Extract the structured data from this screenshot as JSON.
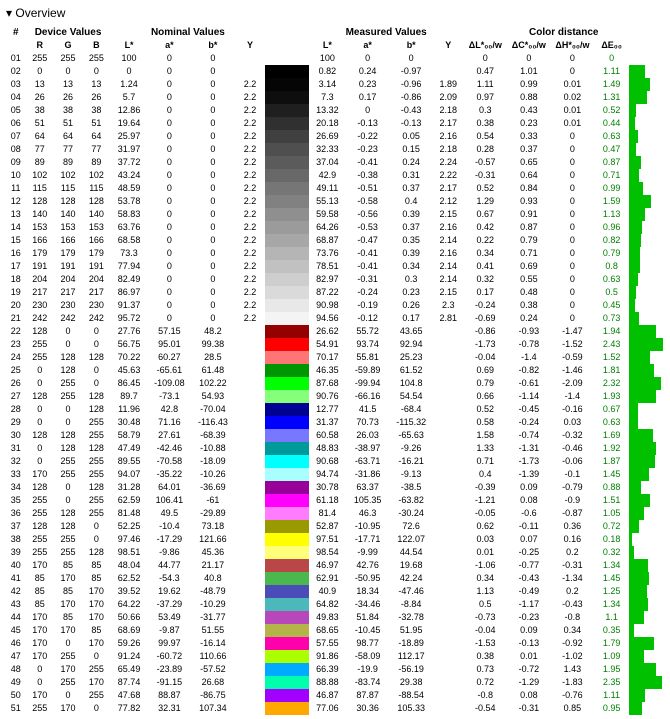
{
  "title": "▾ Overview",
  "groups": {
    "idx": "#",
    "device": "Device Values",
    "nominal": "Nominal Values",
    "measured": "Measured Values",
    "distance": "Color distance"
  },
  "columns": [
    "",
    "R",
    "G",
    "B",
    "L*",
    "a*",
    "b*",
    "Y",
    "",
    "L*",
    "a*",
    "b*",
    "Y",
    "ΔL*₀₀/w",
    "ΔC*₀₀/w",
    "ΔH*₀₀/w",
    "ΔE₀₀",
    ""
  ],
  "bar_color": "#00c000",
  "de_color": "#008000",
  "de_max": 2.5,
  "rows": [
    [
      "01",
      255,
      255,
      255,
      "100",
      "0",
      "0",
      "",
      "#ffffff",
      "100",
      "0",
      "0",
      "",
      "0",
      "0",
      "0",
      "0"
    ],
    [
      "02",
      0,
      0,
      0,
      "0",
      "0",
      "0",
      "",
      "#000000",
      "0.82",
      "0.24",
      "-0.97",
      "",
      "0.47",
      "1.01",
      "0",
      "1.11"
    ],
    [
      "03",
      13,
      13,
      13,
      "1.24",
      "0",
      "0",
      "2.2",
      "#050505",
      "3.14",
      "0.23",
      "-0.96",
      "1.89",
      "1.11",
      "0.99",
      "0.01",
      "1.49"
    ],
    [
      "04",
      26,
      26,
      26,
      "5.7",
      "0",
      "0",
      "2.2",
      "#0e0e0e",
      "7.3",
      "0.17",
      "-0.86",
      "2.09",
      "0.97",
      "0.88",
      "0.02",
      "1.31"
    ],
    [
      "05",
      38,
      38,
      38,
      "12.86",
      "0",
      "0",
      "2.2",
      "#1f1f1f",
      "13.32",
      "0",
      "-0.43",
      "2.18",
      "0.3",
      "0.43",
      "0.01",
      "0.52"
    ],
    [
      "06",
      51,
      51,
      51,
      "19.64",
      "0",
      "0",
      "2.2",
      "#303030",
      "20.18",
      "-0.13",
      "-0.13",
      "2.17",
      "0.38",
      "0.23",
      "0.01",
      "0.44"
    ],
    [
      "07",
      64,
      64,
      64,
      "25.97",
      "0",
      "0",
      "2.2",
      "#404040",
      "26.69",
      "-0.22",
      "0.05",
      "2.16",
      "0.54",
      "0.33",
      "0",
      "0.63"
    ],
    [
      "08",
      77,
      77,
      77,
      "31.97",
      "0",
      "0",
      "2.2",
      "#4f4f4f",
      "32.33",
      "-0.23",
      "0.15",
      "2.18",
      "0.28",
      "0.37",
      "0",
      "0.47"
    ],
    [
      "09",
      89,
      89,
      89,
      "37.72",
      "0",
      "0",
      "2.2",
      "#5b5b5b",
      "37.04",
      "-0.41",
      "0.24",
      "2.24",
      "-0.57",
      "0.65",
      "0",
      "0.87"
    ],
    [
      "10",
      102,
      102,
      102,
      "43.24",
      "0",
      "0",
      "2.2",
      "#686868",
      "42.9",
      "-0.38",
      "0.31",
      "2.22",
      "-0.31",
      "0.64",
      "0",
      "0.71"
    ],
    [
      "11",
      115,
      115,
      115,
      "48.59",
      "0",
      "0",
      "2.2",
      "#767676",
      "49.11",
      "-0.51",
      "0.37",
      "2.17",
      "0.52",
      "0.84",
      "0",
      "0.99"
    ],
    [
      "12",
      128,
      128,
      128,
      "53.78",
      "0",
      "0",
      "2.2",
      "#818181",
      "55.13",
      "-0.58",
      "0.4",
      "2.12",
      "1.29",
      "0.93",
      "0",
      "1.59"
    ],
    [
      "13",
      140,
      140,
      140,
      "58.83",
      "0",
      "0",
      "2.2",
      "#8f8f8f",
      "59.58",
      "-0.56",
      "0.39",
      "2.15",
      "0.67",
      "0.91",
      "0",
      "1.13"
    ],
    [
      "14",
      153,
      153,
      153,
      "63.76",
      "0",
      "0",
      "2.2",
      "#9b9b9b",
      "64.26",
      "-0.53",
      "0.37",
      "2.16",
      "0.42",
      "0.87",
      "0",
      "0.96"
    ],
    [
      "15",
      166,
      166,
      166,
      "68.58",
      "0",
      "0",
      "2.2",
      "#a7a7a7",
      "68.87",
      "-0.47",
      "0.35",
      "2.14",
      "0.22",
      "0.79",
      "0",
      "0.82"
    ],
    [
      "16",
      179,
      179,
      179,
      "73.3",
      "0",
      "0",
      "2.2",
      "#b5b5b5",
      "73.76",
      "-0.41",
      "0.39",
      "2.16",
      "0.34",
      "0.71",
      "0",
      "0.79"
    ],
    [
      "17",
      191,
      191,
      191,
      "77.94",
      "0",
      "0",
      "2.2",
      "#c1c1c1",
      "78.51",
      "-0.41",
      "0.34",
      "2.14",
      "0.41",
      "0.69",
      "0",
      "0.8"
    ],
    [
      "18",
      204,
      204,
      204,
      "82.49",
      "0",
      "0",
      "2.2",
      "#cecece",
      "82.97",
      "-0.31",
      "0.3",
      "2.14",
      "0.32",
      "0.55",
      "0",
      "0.63"
    ],
    [
      "19",
      217,
      217,
      217,
      "86.97",
      "0",
      "0",
      "2.2",
      "#dadada",
      "87.22",
      "-0.24",
      "0.23",
      "2.15",
      "0.17",
      "0.48",
      "0",
      "0.5"
    ],
    [
      "20",
      230,
      230,
      230,
      "91.37",
      "0",
      "0",
      "2.2",
      "#e8e8e8",
      "90.98",
      "-0.19",
      "0.26",
      "2.3",
      "-0.24",
      "0.38",
      "0",
      "0.45"
    ],
    [
      "21",
      242,
      242,
      242,
      "95.72",
      "0",
      "0",
      "2.2",
      "#f4f4f4",
      "94.56",
      "-0.12",
      "0.17",
      "2.81",
      "-0.69",
      "0.24",
      "0",
      "0.73"
    ],
    [
      "22",
      128,
      0,
      0,
      "27.76",
      "57.15",
      "48.2",
      "",
      "#950000",
      "26.62",
      "55.72",
      "43.65",
      "",
      "-0.86",
      "-0.93",
      "-1.47",
      "1.94"
    ],
    [
      "23",
      255,
      0,
      0,
      "56.75",
      "95.01",
      "99.38",
      "",
      "#ff0000",
      "54.91",
      "93.74",
      "92.94",
      "",
      "-1.73",
      "-0.78",
      "-1.52",
      "2.43"
    ],
    [
      "24",
      255,
      128,
      128,
      "70.22",
      "60.27",
      "28.5",
      "",
      "#ff7575",
      "70.17",
      "55.81",
      "25.23",
      "",
      "-0.04",
      "-1.4",
      "-0.59",
      "1.52"
    ],
    [
      "25",
      0,
      128,
      0,
      "45.63",
      "-65.61",
      "61.48",
      "",
      "#009600",
      "46.35",
      "-59.89",
      "61.52",
      "",
      "0.69",
      "-0.82",
      "-1.46",
      "1.81"
    ],
    [
      "26",
      0,
      255,
      0,
      "86.45",
      "-109.08",
      "102.22",
      "",
      "#00ff00",
      "87.68",
      "-99.94",
      "104.8",
      "",
      "0.79",
      "-0.61",
      "-2.09",
      "2.32"
    ],
    [
      "27",
      128,
      255,
      128,
      "89.7",
      "-73.1",
      "54.93",
      "",
      "#86ff7a",
      "90.76",
      "-66.16",
      "54.54",
      "",
      "0.66",
      "-1.14",
      "-1.4",
      "1.93"
    ],
    [
      "28",
      0,
      0,
      128,
      "11.96",
      "42.8",
      "-70.04",
      "",
      "#000092",
      "12.77",
      "41.5",
      "-68.4",
      "",
      "0.52",
      "-0.45",
      "-0.16",
      "0.67"
    ],
    [
      "29",
      0,
      0,
      255,
      "30.48",
      "71.16",
      "-116.43",
      "",
      "#0000ff",
      "31.37",
      "70.73",
      "-115.32",
      "",
      "0.58",
      "-0.24",
      "0.03",
      "0.63"
    ],
    [
      "30",
      128,
      128,
      255,
      "58.79",
      "27.61",
      "-68.39",
      "",
      "#7878ff",
      "60.58",
      "26.03",
      "-65.63",
      "",
      "1.58",
      "-0.74",
      "-0.32",
      "1.69"
    ],
    [
      "31",
      0,
      128,
      128,
      "47.49",
      "-42.46",
      "-10.88",
      "",
      "#009999",
      "48.83",
      "-38.97",
      "-9.26",
      "",
      "1.33",
      "-1.31",
      "-0.46",
      "1.92"
    ],
    [
      "32",
      0,
      255,
      255,
      "89.55",
      "-70.58",
      "-18.09",
      "",
      "#00ffff",
      "90.68",
      "-63.71",
      "-16.21",
      "",
      "0.71",
      "-1.73",
      "-0.06",
      "1.87"
    ],
    [
      "33",
      170,
      255,
      255,
      "94.07",
      "-35.22",
      "-10.26",
      "",
      "#a8ffff",
      "94.74",
      "-31.86",
      "-9.13",
      "",
      "0.4",
      "-1.39",
      "-0.1",
      "1.45"
    ],
    [
      "34",
      128,
      0,
      128,
      "31.28",
      "64.01",
      "-36.69",
      "",
      "#970099",
      "30.78",
      "63.37",
      "-38.5",
      "",
      "-0.39",
      "0.09",
      "-0.79",
      "0.88"
    ],
    [
      "35",
      255,
      0,
      255,
      "62.59",
      "106.41",
      "-61",
      "",
      "#ff00ff",
      "61.18",
      "105.35",
      "-63.82",
      "",
      "-1.21",
      "0.08",
      "-0.9",
      "1.51"
    ],
    [
      "36",
      255,
      128,
      255,
      "81.48",
      "49.5",
      "-29.89",
      "",
      "#ff7cff",
      "81.4",
      "46.3",
      "-30.24",
      "",
      "-0.05",
      "-0.6",
      "-0.87",
      "1.05"
    ],
    [
      "37",
      128,
      128,
      0,
      "52.25",
      "-10.4",
      "73.18",
      "",
      "#989a00",
      "52.87",
      "-10.95",
      "72.6",
      "",
      "0.62",
      "-0.11",
      "0.36",
      "0.72"
    ],
    [
      "38",
      255,
      255,
      0,
      "97.46",
      "-17.29",
      "121.66",
      "",
      "#ffff00",
      "97.51",
      "-17.71",
      "122.07",
      "",
      "0.03",
      "0.07",
      "0.16",
      "0.18"
    ],
    [
      "39",
      255,
      255,
      128,
      "98.51",
      "-9.86",
      "45.36",
      "",
      "#ffff79",
      "98.54",
      "-9.99",
      "44.54",
      "",
      "0.01",
      "-0.25",
      "0.2",
      "0.32"
    ],
    [
      "40",
      170,
      85,
      85,
      "48.04",
      "44.77",
      "21.17",
      "",
      "#ba4747",
      "46.97",
      "42.76",
      "19.68",
      "",
      "-1.06",
      "-0.77",
      "-0.31",
      "1.34"
    ],
    [
      "41",
      85,
      170,
      85,
      "62.52",
      "-54.3",
      "40.8",
      "",
      "#4bb84e",
      "62.91",
      "-50.95",
      "42.24",
      "",
      "0.34",
      "-0.43",
      "-1.34",
      "1.45"
    ],
    [
      "42",
      85,
      85,
      170,
      "39.52",
      "19.62",
      "-48.79",
      "",
      "#4c4cb9",
      "40.9",
      "18.34",
      "-47.46",
      "",
      "1.13",
      "-0.49",
      "0.2",
      "1.25"
    ],
    [
      "43",
      85,
      170,
      170,
      "64.22",
      "-37.29",
      "-10.29",
      "",
      "#4bb9b9",
      "64.82",
      "-34.46",
      "-8.84",
      "",
      "0.5",
      "-1.17",
      "-0.43",
      "1.34"
    ],
    [
      "44",
      170,
      85,
      170,
      "50.66",
      "53.49",
      "-31.77",
      "",
      "#b847bc",
      "49.83",
      "51.84",
      "-32.78",
      "",
      "-0.73",
      "-0.23",
      "-0.8",
      "1.1"
    ],
    [
      "45",
      170,
      170,
      85,
      "68.69",
      "-9.87",
      "51.55",
      "",
      "#b3b548",
      "68.65",
      "-10.45",
      "51.95",
      "",
      "-0.04",
      "0.09",
      "0.34",
      "0.35"
    ],
    [
      "46",
      170,
      0,
      170,
      "59.26",
      "99.97",
      "-16.14",
      "",
      "#ff00ad",
      "57.55",
      "98.77",
      "-18.89",
      "",
      "-1.53",
      "-0.13",
      "-0.92",
      "1.79"
    ],
    [
      "47",
      170,
      255,
      0,
      "91.24",
      "-60.72",
      "110.66",
      "",
      "#acff00",
      "91.86",
      "-58.09",
      "112.17",
      "",
      "0.38",
      "0.01",
      "-1.02",
      "1.09"
    ],
    [
      "48",
      0,
      170,
      255,
      "65.49",
      "-23.89",
      "-57.52",
      "",
      "#00aaff",
      "66.39",
      "-19.9",
      "-56.19",
      "",
      "0.73",
      "-0.72",
      "1.43",
      "1.95"
    ],
    [
      "49",
      0,
      255,
      170,
      "87.74",
      "-91.15",
      "26.68",
      "",
      "#00ffad",
      "88.88",
      "-83.74",
      "29.38",
      "",
      "0.72",
      "-1.29",
      "-1.83",
      "2.35"
    ],
    [
      "50",
      170,
      0,
      255,
      "47.68",
      "88.87",
      "-86.75",
      "",
      "#a200ff",
      "46.87",
      "87.87",
      "-88.54",
      "",
      "-0.8",
      "0.08",
      "-0.76",
      "1.11"
    ],
    [
      "51",
      255,
      170,
      0,
      "77.82",
      "32.31",
      "107.34",
      "",
      "#ffa800",
      "77.06",
      "30.36",
      "105.33",
      "",
      "-0.54",
      "-0.31",
      "0.85",
      "0.95"
    ]
  ]
}
